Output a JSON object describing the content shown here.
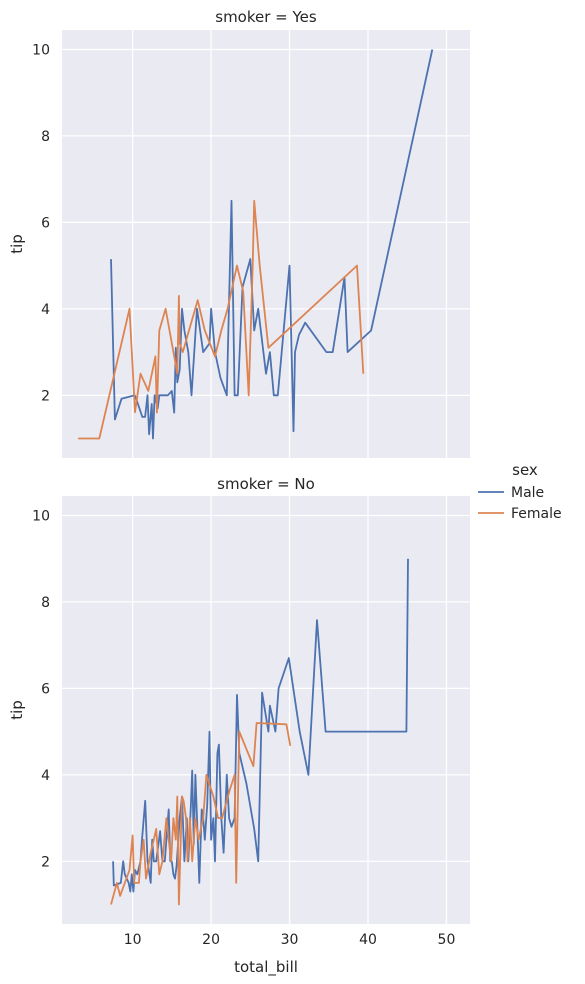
{
  "chart_data": [
    {
      "type": "line",
      "title": "smoker = Yes",
      "xlabel": "",
      "ylabel": "tip",
      "xlim": [
        1.0,
        53.0
      ],
      "ylim": [
        0.55,
        10.45
      ],
      "xticks": [
        10,
        20,
        30,
        40,
        50
      ],
      "yticks": [
        2,
        4,
        6,
        8,
        10
      ],
      "show_x_tick_labels": false,
      "grid": true,
      "series": [
        {
          "name": "Male",
          "color": "#4C72B0",
          "points": [
            [
              7.25,
              5.15
            ],
            [
              7.74,
              1.44
            ],
            [
              8.58,
              1.92
            ],
            [
              10.27,
              2.0
            ],
            [
              10.5,
              1.9
            ],
            [
              11.24,
              1.5
            ],
            [
              11.59,
              1.5
            ],
            [
              11.9,
              2.0
            ],
            [
              12.1,
              1.1
            ],
            [
              12.43,
              1.8
            ],
            [
              12.6,
              1.0
            ],
            [
              12.8,
              2.0
            ],
            [
              13.2,
              1.7
            ],
            [
              13.4,
              2.0
            ],
            [
              14.5,
              2.0
            ],
            [
              15.0,
              2.1
            ],
            [
              15.3,
              1.6
            ],
            [
              15.5,
              3.1
            ],
            [
              15.7,
              2.3
            ],
            [
              16.0,
              2.6
            ],
            [
              16.3,
              4.0
            ],
            [
              16.6,
              3.5
            ],
            [
              17.1,
              3.0
            ],
            [
              17.5,
              2.0
            ],
            [
              18.2,
              4.0
            ],
            [
              19.0,
              3.0
            ],
            [
              19.8,
              3.2
            ],
            [
              20.0,
              4.0
            ],
            [
              20.5,
              3.0
            ],
            [
              21.2,
              2.4
            ],
            [
              22.0,
              2.0
            ],
            [
              22.6,
              6.5
            ],
            [
              23.0,
              2.0
            ],
            [
              23.4,
              2.0
            ],
            [
              24.0,
              4.5
            ],
            [
              25.0,
              5.15
            ],
            [
              25.5,
              3.5
            ],
            [
              26.0,
              4.0
            ],
            [
              27.0,
              2.5
            ],
            [
              27.5,
              3.0
            ],
            [
              28.0,
              2.0
            ],
            [
              28.5,
              2.0
            ],
            [
              29.0,
              3.0
            ],
            [
              30.0,
              5.0
            ],
            [
              30.5,
              1.17
            ],
            [
              30.7,
              3.0
            ],
            [
              31.2,
              3.4
            ],
            [
              32.0,
              3.68
            ],
            [
              34.7,
              3.0
            ],
            [
              35.5,
              3.0
            ],
            [
              37.0,
              4.73
            ],
            [
              37.4,
              3.0
            ],
            [
              40.4,
              3.5
            ],
            [
              48.2,
              10.0
            ]
          ]
        },
        {
          "name": "Female",
          "color": "#DD8452",
          "points": [
            [
              3.07,
              1.0
            ],
            [
              5.75,
              1.0
            ],
            [
              9.6,
              4.0
            ],
            [
              10.3,
              1.61
            ],
            [
              11.0,
              2.5
            ],
            [
              12.0,
              2.1
            ],
            [
              12.9,
              2.9
            ],
            [
              13.1,
              1.6
            ],
            [
              13.4,
              3.5
            ],
            [
              14.2,
              4.0
            ],
            [
              15.3,
              2.9
            ],
            [
              15.7,
              2.5
            ],
            [
              15.9,
              4.3
            ],
            [
              16.0,
              3.2
            ],
            [
              16.4,
              3.0
            ],
            [
              17.5,
              3.7
            ],
            [
              18.3,
              4.2
            ],
            [
              19.2,
              3.5
            ],
            [
              20.5,
              2.9
            ],
            [
              21.3,
              3.5
            ],
            [
              22.1,
              4.0
            ],
            [
              23.3,
              5.0
            ],
            [
              24.1,
              4.4
            ],
            [
              24.5,
              3.0
            ],
            [
              24.8,
              2.0
            ],
            [
              25.3,
              5.0
            ],
            [
              25.5,
              6.5
            ],
            [
              26.2,
              5.0
            ],
            [
              27.3,
              3.1
            ],
            [
              38.6,
              5.0
            ],
            [
              39.4,
              2.5
            ]
          ]
        }
      ]
    },
    {
      "type": "line",
      "title": "smoker = No",
      "xlabel": "total_bill",
      "ylabel": "tip",
      "xlim": [
        1.0,
        53.0
      ],
      "ylim": [
        0.55,
        10.45
      ],
      "xticks": [
        10,
        20,
        30,
        40,
        50
      ],
      "yticks": [
        2,
        4,
        6,
        8,
        10
      ],
      "show_x_tick_labels": true,
      "grid": true,
      "series": [
        {
          "name": "Male",
          "color": "#4C72B0",
          "points": [
            [
              7.51,
              2.0
            ],
            [
              7.6,
              1.44
            ],
            [
              8.5,
              1.5
            ],
            [
              8.8,
              2.0
            ],
            [
              9.0,
              1.7
            ],
            [
              9.5,
              1.5
            ],
            [
              9.7,
              1.3
            ],
            [
              9.9,
              1.7
            ],
            [
              10.1,
              1.3
            ],
            [
              10.3,
              1.8
            ],
            [
              10.6,
              1.7
            ],
            [
              11.0,
              2.0
            ],
            [
              11.2,
              2.5
            ],
            [
              11.6,
              3.4
            ],
            [
              11.9,
              2.0
            ],
            [
              12.3,
              1.5
            ],
            [
              12.5,
              2.5
            ],
            [
              12.7,
              2.0
            ],
            [
              13.0,
              2.0
            ],
            [
              13.3,
              2.4
            ],
            [
              13.5,
              2.7
            ],
            [
              13.8,
              2.0
            ],
            [
              14.1,
              2.0
            ],
            [
              14.3,
              2.5
            ],
            [
              14.6,
              3.2
            ],
            [
              14.8,
              2.0
            ],
            [
              15.0,
              2.0
            ],
            [
              15.2,
              1.7
            ],
            [
              15.4,
              1.6
            ],
            [
              15.6,
              1.9
            ],
            [
              16.0,
              3.0
            ],
            [
              16.3,
              3.5
            ],
            [
              16.6,
              2.0
            ],
            [
              16.9,
              3.0
            ],
            [
              17.1,
              2.0
            ],
            [
              17.4,
              3.2
            ],
            [
              17.6,
              4.1
            ],
            [
              17.8,
              2.4
            ],
            [
              18.0,
              4.0
            ],
            [
              18.2,
              3.0
            ],
            [
              18.5,
              1.5
            ],
            [
              18.8,
              3.2
            ],
            [
              19.0,
              3.0
            ],
            [
              19.2,
              2.5
            ],
            [
              19.5,
              3.3
            ],
            [
              19.8,
              5.0
            ],
            [
              20.0,
              2.5
            ],
            [
              20.3,
              3.0
            ],
            [
              20.5,
              2.0
            ],
            [
              20.8,
              4.5
            ],
            [
              21.0,
              4.7
            ],
            [
              21.3,
              3.0
            ],
            [
              21.6,
              2.2
            ],
            [
              22.0,
              4.0
            ],
            [
              22.3,
              3.0
            ],
            [
              22.6,
              2.8
            ],
            [
              23.0,
              3.0
            ],
            [
              23.3,
              5.85
            ],
            [
              23.6,
              4.5
            ],
            [
              24.5,
              3.8
            ],
            [
              25.5,
              2.75
            ],
            [
              26.0,
              2.0
            ],
            [
              26.5,
              5.9
            ],
            [
              27.3,
              5.0
            ],
            [
              27.5,
              5.6
            ],
            [
              28.2,
              5.0
            ],
            [
              28.6,
              6.0
            ],
            [
              29.9,
              6.7
            ],
            [
              31.3,
              5.0
            ],
            [
              32.4,
              4.0
            ],
            [
              33.5,
              7.58
            ],
            [
              34.6,
              5.0
            ],
            [
              38.4,
              5.0
            ],
            [
              44.9,
              5.0
            ],
            [
              45.1,
              9.0
            ]
          ]
        },
        {
          "name": "Female",
          "color": "#DD8452",
          "points": [
            [
              7.25,
              1.0
            ],
            [
              8.0,
              1.5
            ],
            [
              8.4,
              1.2
            ],
            [
              9.0,
              1.5
            ],
            [
              9.6,
              1.8
            ],
            [
              10.0,
              2.6
            ],
            [
              10.2,
              1.5
            ],
            [
              10.8,
              1.5
            ],
            [
              11.0,
              2.0
            ],
            [
              11.4,
              2.5
            ],
            [
              11.7,
              1.6
            ],
            [
              12.3,
              2.2
            ],
            [
              12.7,
              2.5
            ],
            [
              13.0,
              2.75
            ],
            [
              13.4,
              1.7
            ],
            [
              13.8,
              2.0
            ],
            [
              14.3,
              3.0
            ],
            [
              14.6,
              2.5
            ],
            [
              14.9,
              2.0
            ],
            [
              15.2,
              3.0
            ],
            [
              15.5,
              2.5
            ],
            [
              15.7,
              3.5
            ],
            [
              15.9,
              1.0
            ],
            [
              16.3,
              3.5
            ],
            [
              16.5,
              3.4
            ],
            [
              16.8,
              3.0
            ],
            [
              17.0,
              2.0
            ],
            [
              17.3,
              3.0
            ],
            [
              17.6,
              2.0
            ],
            [
              18.0,
              3.0
            ],
            [
              18.4,
              2.5
            ],
            [
              19.0,
              3.0
            ],
            [
              19.4,
              4.0
            ],
            [
              20.3,
              3.5
            ],
            [
              20.9,
              3.0
            ],
            [
              21.4,
              3.0
            ],
            [
              22.3,
              3.6
            ],
            [
              23.0,
              4.0
            ],
            [
              23.2,
              1.5
            ],
            [
              23.6,
              5.0
            ],
            [
              25.4,
              4.2
            ],
            [
              25.8,
              5.2
            ],
            [
              29.6,
              5.17
            ],
            [
              30.1,
              4.67
            ]
          ]
        }
      ]
    }
  ],
  "legend": {
    "title": "sex",
    "placement": "right",
    "entries": [
      {
        "label": "Male",
        "color": "#4C72B0"
      },
      {
        "label": "Female",
        "color": "#DD8452"
      }
    ]
  }
}
